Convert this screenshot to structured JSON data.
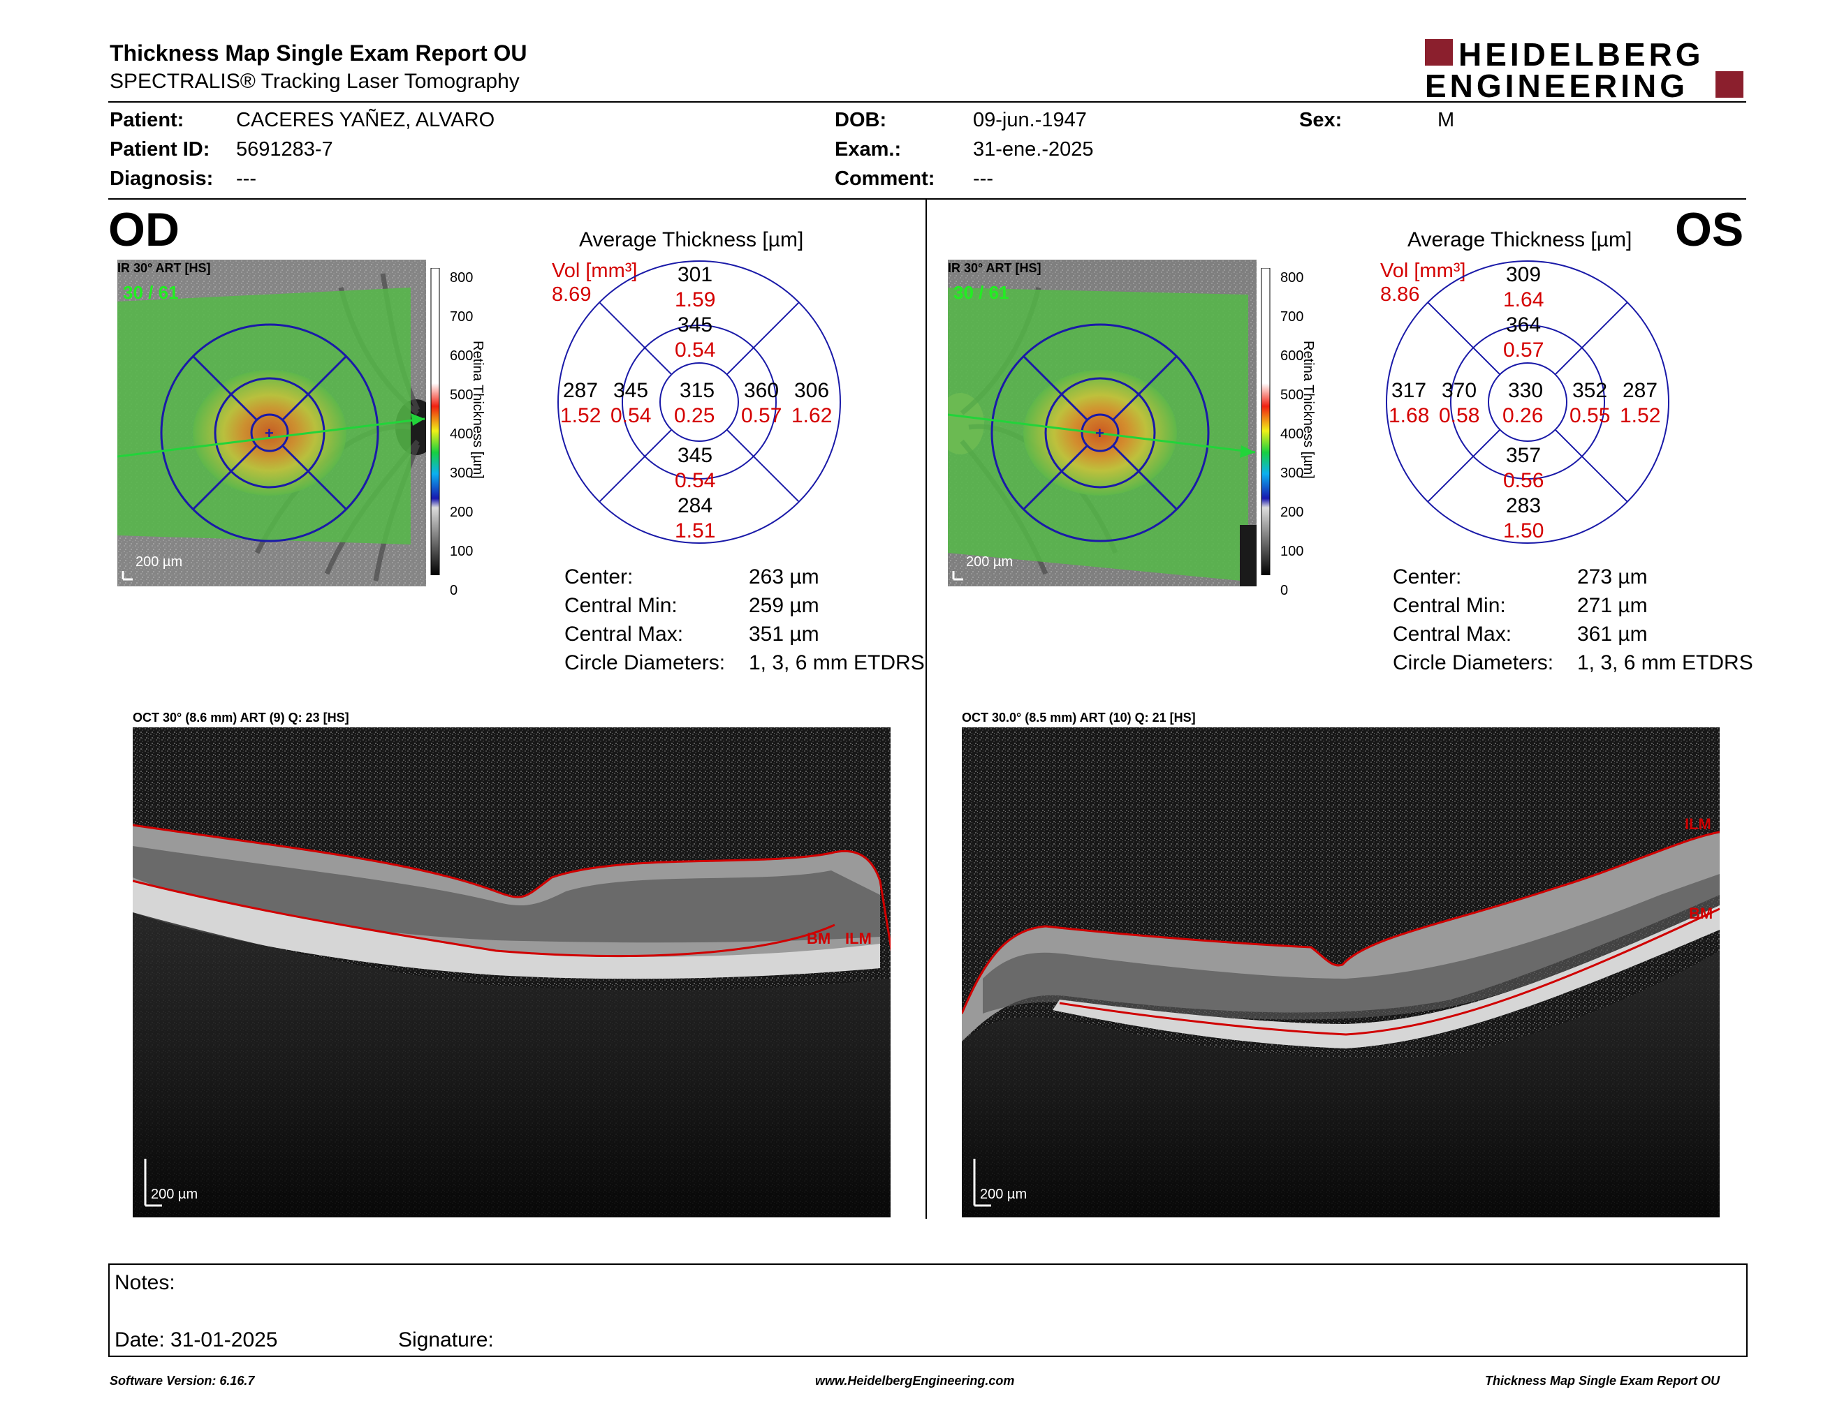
{
  "header": {
    "title": "Thickness Map Single Exam Report OU",
    "subtitle": "SPECTRALIS® Tracking Laser Tomography",
    "logo_line1": "HEIDELBERG",
    "logo_line2": "ENGINEERING"
  },
  "patient": {
    "patient_label": "Patient:",
    "patient_value": "CACERES YAÑEZ, ALVARO",
    "id_label": "Patient ID:",
    "id_value": "5691283-7",
    "diagnosis_label": "Diagnosis:",
    "diagnosis_value": "---",
    "dob_label": "DOB:",
    "dob_value": "09-jun.-1947",
    "exam_label": "Exam.:",
    "exam_value": "31-ene.-2025",
    "comment_label": "Comment:",
    "comment_value": "---",
    "sex_label": "Sex:",
    "sex_value": "M"
  },
  "colors": {
    "brand": "#8b1f2d",
    "grid_blue": "#1a1aa8",
    "value_red": "#d40000",
    "segmentation_red": "#d00000"
  },
  "od": {
    "eye_label": "OD",
    "fundus_label": "IR 30° ART [HS]",
    "frames": "30 / 61",
    "scale_label": "200 µm",
    "colorbar_ticks": [
      "800",
      "700",
      "600",
      "500",
      "400",
      "300",
      "200",
      "100",
      "0"
    ],
    "colorbar_title": "Retina Thickness [µm]",
    "avg_title": "Average Thickness [µm]",
    "vol_label": "Vol [mm³]",
    "vol_value": "8.69",
    "grid": {
      "outer_top": "301",
      "outer_top_vol": "1.59",
      "inner_top": "345",
      "inner_top_vol": "0.54",
      "outer_left": "287",
      "outer_left_vol": "1.52",
      "inner_left": "345",
      "inner_left_vol": "0.54",
      "center": "315",
      "center_vol": "0.25",
      "inner_right": "360",
      "inner_right_vol": "0.57",
      "outer_right": "306",
      "outer_right_vol": "1.62",
      "inner_bottom": "345",
      "inner_bottom_vol": "0.54",
      "outer_bottom": "284",
      "outer_bottom_vol": "1.51"
    },
    "stats": {
      "center_label": "Center:",
      "center_value": "263 µm",
      "min_label": "Central Min:",
      "min_value": "259 µm",
      "max_label": "Central Max:",
      "max_value": "351 µm",
      "diam_label": "Circle Diameters:",
      "diam_value": "1, 3, 6 mm ETDRS"
    },
    "oct_label": "OCT 30° (8.6 mm) ART (9) Q: 23 [HS]",
    "oct_scale": "200 µm",
    "bm_label": "BM",
    "ilm_label": "ILM"
  },
  "os": {
    "eye_label": "OS",
    "fundus_label": "IR 30° ART [HS]",
    "frames": "30 / 61",
    "scale_label": "200 µm",
    "colorbar_ticks": [
      "800",
      "700",
      "600",
      "500",
      "400",
      "300",
      "200",
      "100",
      "0"
    ],
    "colorbar_title": "Retina Thickness [µm]",
    "avg_title": "Average Thickness [µm]",
    "vol_label": "Vol [mm³]",
    "vol_value": "8.86",
    "grid": {
      "outer_top": "309",
      "outer_top_vol": "1.64",
      "inner_top": "364",
      "inner_top_vol": "0.57",
      "outer_left": "317",
      "outer_left_vol": "1.68",
      "inner_left": "370",
      "inner_left_vol": "0.58",
      "center": "330",
      "center_vol": "0.26",
      "inner_right": "352",
      "inner_right_vol": "0.55",
      "outer_right": "287",
      "outer_right_vol": "1.52",
      "inner_bottom": "357",
      "inner_bottom_vol": "0.56",
      "outer_bottom": "283",
      "outer_bottom_vol": "1.50"
    },
    "stats": {
      "center_label": "Center:",
      "center_value": "273 µm",
      "min_label": "Central Min:",
      "min_value": "271 µm",
      "max_label": "Central Max:",
      "max_value": "361 µm",
      "diam_label": "Circle Diameters:",
      "diam_value": "1, 3, 6 mm ETDRS"
    },
    "oct_label": "OCT 30.0° (8.5 mm) ART (10) Q: 21 [HS]",
    "oct_scale": "200 µm",
    "bm_label": "BM",
    "ilm_label": "ILM"
  },
  "notes": {
    "notes_label": "Notes:",
    "date_label": "Date: 31-01-2025",
    "signature_label": "Signature:"
  },
  "footer": {
    "software": "Software Version: 6.16.7",
    "website": "www.HeidelbergEngineering.com",
    "report": "Thickness Map Single Exam Report OU"
  }
}
